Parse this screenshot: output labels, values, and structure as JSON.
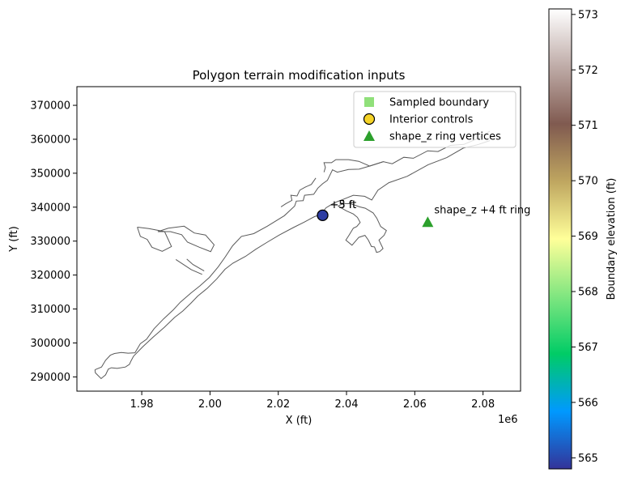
{
  "chart_data": {
    "type": "scatter",
    "title": "Polygon terrain modification inputs",
    "xlabel": "X (ft)",
    "ylabel": "Y (ft)",
    "x_offset_label": "1e6",
    "xlim": [
      1961000,
      2091000
    ],
    "ylim": [
      285800,
      375500
    ],
    "x_ticks": [
      1980000,
      2000000,
      2020000,
      2040000,
      2060000,
      2080000
    ],
    "x_tick_labels": [
      "1.98",
      "2.00",
      "2.02",
      "2.04",
      "2.06",
      "2.08"
    ],
    "y_ticks": [
      290000,
      300000,
      310000,
      320000,
      330000,
      340000,
      350000,
      360000,
      370000
    ],
    "y_tick_labels": [
      "290000",
      "300000",
      "310000",
      "320000",
      "330000",
      "340000",
      "350000",
      "360000",
      "370000"
    ],
    "grid": false,
    "legend_position": "upper-right",
    "legend": [
      {
        "label": "Sampled boundary",
        "marker": "square",
        "color": "#90e07a"
      },
      {
        "label": "Interior controls",
        "marker": "circle",
        "color": "#f5d327"
      },
      {
        "label": "shape_z ring vertices",
        "marker": "triangle",
        "color": "#2ca02c"
      }
    ],
    "polygon_outline": {
      "color": "#595959",
      "outer": [
        [
          1966300,
          292100
        ],
        [
          1968200,
          292900
        ],
        [
          1969400,
          294900
        ],
        [
          1970800,
          296400
        ],
        [
          1972000,
          296900
        ],
        [
          1974000,
          297200
        ],
        [
          1976000,
          297000
        ],
        [
          1978000,
          297100
        ],
        [
          1979600,
          299800
        ],
        [
          1981400,
          301100
        ],
        [
          1983600,
          304200
        ],
        [
          1986400,
          307100
        ],
        [
          1989200,
          309700
        ],
        [
          1991300,
          312000
        ],
        [
          1994400,
          314700
        ],
        [
          1997000,
          316800
        ],
        [
          1999800,
          319300
        ],
        [
          2002400,
          322400
        ],
        [
          2004500,
          325400
        ],
        [
          2006600,
          328600
        ],
        [
          2009200,
          331400
        ],
        [
          2012800,
          332200
        ],
        [
          2016800,
          334400
        ],
        [
          2021800,
          337500
        ],
        [
          2024800,
          340300
        ],
        [
          2025300,
          341800
        ],
        [
          2027300,
          341900
        ],
        [
          2027700,
          343500
        ],
        [
          2030400,
          343800
        ],
        [
          2031600,
          345600
        ],
        [
          2033000,
          346900
        ],
        [
          2034400,
          347900
        ],
        [
          2035900,
          351000
        ],
        [
          2037300,
          350300
        ],
        [
          2040600,
          351100
        ],
        [
          2043700,
          351200
        ],
        [
          2046400,
          352000
        ],
        [
          2050800,
          353400
        ],
        [
          2053400,
          352800
        ],
        [
          2056800,
          354700
        ],
        [
          2059600,
          354400
        ],
        [
          2063800,
          356600
        ],
        [
          2066800,
          356400
        ],
        [
          2070400,
          358200
        ],
        [
          2074400,
          358500
        ],
        [
          2078400,
          360200
        ],
        [
          2082000,
          362400
        ]
      ],
      "inner": [
        [
          2082000,
          359600
        ],
        [
          2078400,
          358400
        ],
        [
          2074200,
          357400
        ],
        [
          2069400,
          354600
        ],
        [
          2063900,
          352500
        ],
        [
          2057800,
          349100
        ],
        [
          2052400,
          347200
        ],
        [
          2049200,
          345000
        ],
        [
          2047400,
          342100
        ],
        [
          2045300,
          343200
        ],
        [
          2042000,
          343500
        ],
        [
          2039000,
          342300
        ],
        [
          2037200,
          341600
        ],
        [
          2035600,
          340800
        ],
        [
          2034000,
          339800
        ],
        [
          2032400,
          337800
        ],
        [
          2030600,
          337200
        ],
        [
          2027600,
          335600
        ],
        [
          2024400,
          334000
        ],
        [
          2020300,
          331800
        ],
        [
          2016800,
          329700
        ],
        [
          2013400,
          327600
        ],
        [
          2010400,
          325500
        ],
        [
          2006700,
          323500
        ],
        [
          2004400,
          321700
        ],
        [
          2002000,
          318900
        ],
        [
          1999200,
          316100
        ],
        [
          1996400,
          313800
        ],
        [
          1994400,
          311700
        ],
        [
          1992000,
          309400
        ],
        [
          1989600,
          307500
        ],
        [
          1986600,
          304600
        ],
        [
          1983200,
          301600
        ],
        [
          1980300,
          298900
        ],
        [
          1977600,
          296100
        ],
        [
          1976800,
          294600
        ],
        [
          1976400,
          293700
        ],
        [
          1975200,
          292900
        ],
        [
          1972800,
          292500
        ],
        [
          1971100,
          292700
        ],
        [
          1970200,
          292300
        ],
        [
          1969400,
          290600
        ],
        [
          1968100,
          289500
        ],
        [
          1966400,
          291200
        ],
        [
          1966300,
          292100
        ]
      ],
      "features": [
        [
          [
            1990000,
            324600
          ],
          [
            1994500,
            321600
          ],
          [
            1997700,
            320200
          ]
        ],
        [
          [
            1993200,
            324700
          ],
          [
            1995000,
            323100
          ],
          [
            1998300,
            321200
          ]
        ],
        [
          [
            1978700,
            334100
          ],
          [
            1982100,
            333700
          ],
          [
            1986700,
            332800
          ],
          [
            1988700,
            328400
          ],
          [
            1986000,
            327000
          ],
          [
            1983000,
            328200
          ],
          [
            1981600,
            330500
          ],
          [
            1979600,
            331400
          ],
          [
            1978700,
            334100
          ]
        ],
        [
          [
            1984700,
            332800
          ],
          [
            1987800,
            333800
          ],
          [
            1992400,
            334400
          ],
          [
            1995400,
            332400
          ],
          [
            1998700,
            331800
          ],
          [
            2001200,
            328900
          ],
          [
            2000200,
            326900
          ],
          [
            1996900,
            328200
          ],
          [
            1993400,
            329700
          ],
          [
            1991700,
            331900
          ],
          [
            1988400,
            332800
          ],
          [
            1984700,
            332800
          ]
        ],
        [
          [
            2020800,
            340100
          ],
          [
            2022200,
            341000
          ],
          [
            2024000,
            342000
          ],
          [
            2023700,
            343500
          ],
          [
            2025500,
            343300
          ],
          [
            2026300,
            345000
          ],
          [
            2027900,
            345900
          ],
          [
            2029700,
            346700
          ],
          [
            2031000,
            348600
          ]
        ],
        [
          [
            2033400,
            350300
          ],
          [
            2033800,
            351700
          ],
          [
            2033400,
            353100
          ],
          [
            2035600,
            353100
          ],
          [
            2036900,
            354000
          ],
          [
            2040600,
            354000
          ],
          [
            2043600,
            353500
          ],
          [
            2046800,
            352100
          ],
          [
            2050800,
            353400
          ]
        ],
        [
          [
            2037500,
            340300
          ],
          [
            2040000,
            338900
          ],
          [
            2042000,
            338000
          ],
          [
            2043200,
            337000
          ],
          [
            2044000,
            335500
          ],
          [
            2043000,
            334300
          ],
          [
            2042000,
            333800
          ],
          [
            2040700,
            331700
          ],
          [
            2039800,
            330300
          ],
          [
            2041600,
            328800
          ],
          [
            2043600,
            331100
          ],
          [
            2045400,
            331700
          ],
          [
            2046400,
            330300
          ],
          [
            2047300,
            328400
          ],
          [
            2048200,
            328300
          ],
          [
            2048800,
            326700
          ],
          [
            2049700,
            326900
          ],
          [
            2050700,
            327800
          ],
          [
            2049500,
            330300
          ],
          [
            2051000,
            331700
          ],
          [
            2051700,
            333100
          ],
          [
            2050000,
            334300
          ],
          [
            2048900,
            336700
          ],
          [
            2047800,
            338300
          ],
          [
            2045500,
            339700
          ],
          [
            2043800,
            340100
          ],
          [
            2041300,
            341000
          ],
          [
            2039000,
            341100
          ],
          [
            2037500,
            340300
          ]
        ]
      ]
    },
    "series": [
      {
        "name": "Sampled boundary",
        "marker": "square",
        "points": []
      },
      {
        "name": "Interior controls",
        "marker": "circle",
        "color_value": 564.9,
        "points": [
          [
            2033000,
            337600
          ]
        ],
        "annotations": [
          "+3 ft",
          "+5 ft"
        ]
      },
      {
        "name": "shape_z ring vertices",
        "marker": "triangle",
        "points": [
          [
            2063800,
            335600
          ]
        ],
        "annotations": [
          "shape_z +4 ft ring"
        ]
      }
    ],
    "colorbar": {
      "label": "Boundary elevation (ft)",
      "colormap": "terrain",
      "range": [
        564.8,
        573.1
      ],
      "ticks": [
        565,
        566,
        567,
        568,
        569,
        570,
        571,
        572,
        573
      ],
      "tick_labels": [
        "565",
        "566",
        "567",
        "568",
        "569",
        "570",
        "571",
        "572",
        "573"
      ],
      "stops": [
        "#333399",
        "#0099ff",
        "#00cc66",
        "#80e680",
        "#ffff99",
        "#bfa660",
        "#805a50",
        "#bfaca8",
        "#ffffff"
      ]
    }
  }
}
